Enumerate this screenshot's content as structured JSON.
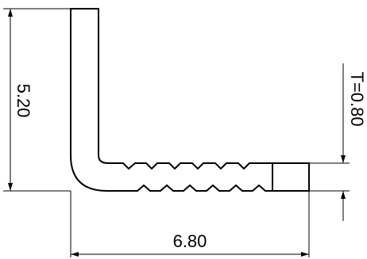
{
  "dimensions": {
    "height": "5.20",
    "width": "6.80",
    "thickness": "T=0.80"
  },
  "colors": {
    "line": "#000000",
    "background": "#ffffff"
  }
}
